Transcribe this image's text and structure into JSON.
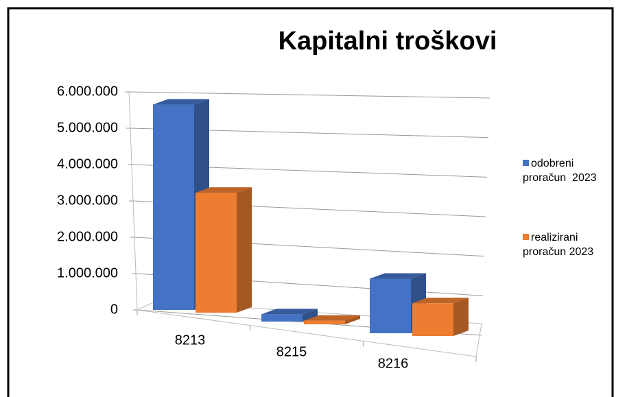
{
  "chart_data": {
    "type": "bar3d",
    "title": "Kapitalni troškovi",
    "categories": [
      "8213",
      "8215",
      "8216"
    ],
    "series": [
      {
        "name": "odobreni proračun  2023",
        "color": "#4472c4",
        "values": [
          5650000,
          200000,
          1500000
        ]
      },
      {
        "name": "realizirani proračun 2023",
        "color": "#ed7d31",
        "values": [
          3300000,
          100000,
          900000
        ]
      }
    ],
    "ylim": [
      0,
      6000000
    ],
    "yticks": [
      0,
      {
        "value": 1000000,
        "label": "1.000.000"
      },
      {
        "value": 2000000,
        "label": "2.000.000"
      },
      {
        "value": 3000000,
        "label": "3.000.000"
      },
      {
        "value": 4000000,
        "label": "4.000.000"
      },
      {
        "value": 5000000,
        "label": "5.000.000"
      },
      {
        "value": 6000000,
        "label": "6.000.000"
      }
    ],
    "grid": true,
    "legend": "right"
  }
}
